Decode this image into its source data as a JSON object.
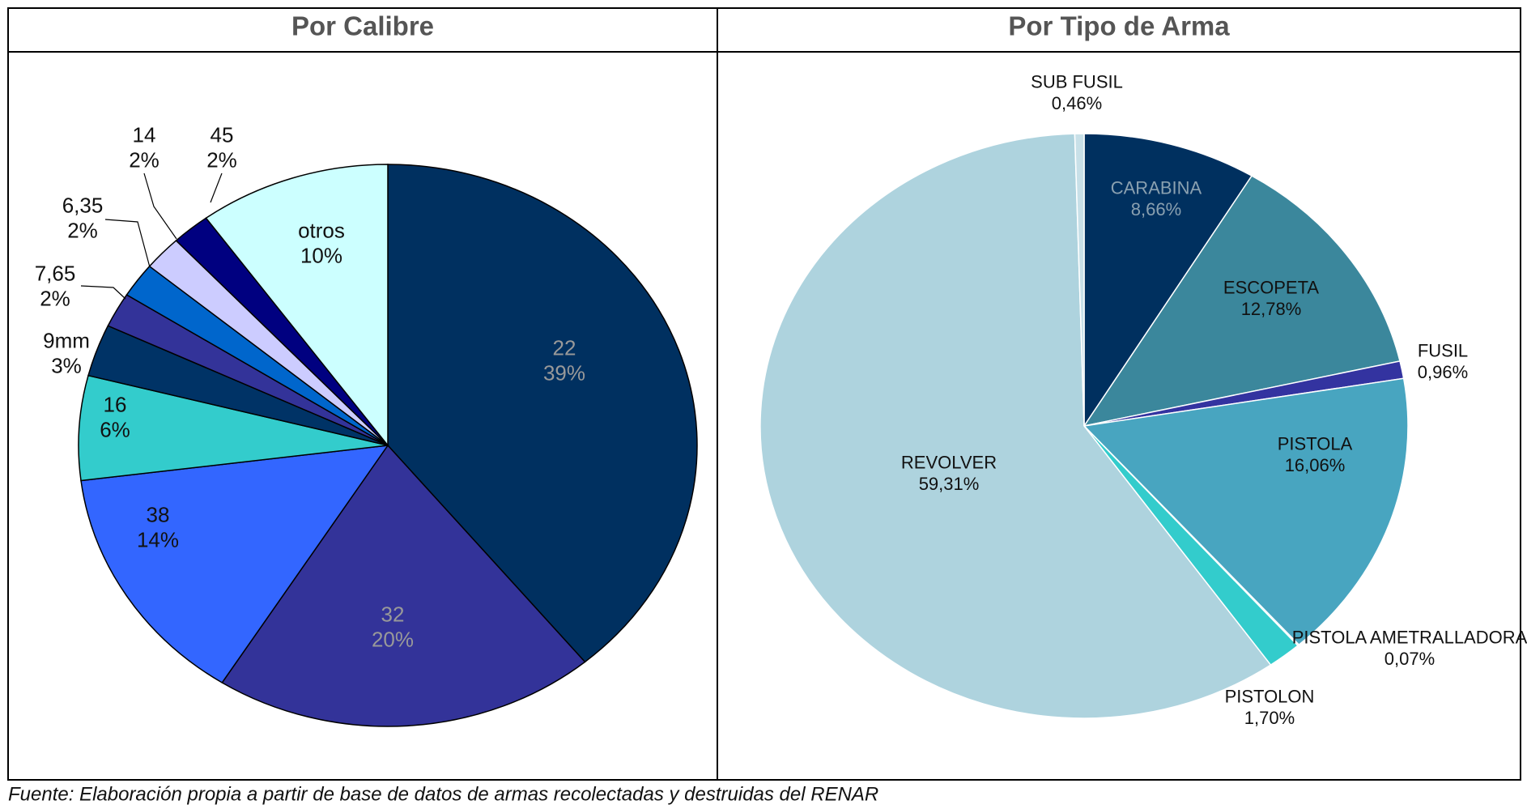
{
  "chart_data": [
    {
      "type": "pie",
      "title": "Por Calibre",
      "categories": [
        "22",
        "32",
        "38",
        "16",
        "9mm",
        "7,65",
        "6,35",
        "14",
        "45",
        "otros"
      ],
      "values": [
        39,
        20,
        14,
        6,
        3,
        2,
        2,
        2,
        2,
        10
      ],
      "value_labels": [
        "39%",
        "20%",
        "14%",
        "6%",
        "3%",
        "2%",
        "2%",
        "2%",
        "2%",
        "10%"
      ],
      "colors": [
        "#003060",
        "#333399",
        "#3366ff",
        "#33cccc",
        "#003366",
        "#333399",
        "#0066cc",
        "#ccccff",
        "#000080",
        "#ccffff"
      ]
    },
    {
      "type": "pie",
      "title": "Por Tipo de Arma",
      "categories": [
        "CARABINA",
        "ESCOPETA",
        "FUSIL",
        "PISTOLA",
        "PISTOLA AMETRALLADORA",
        "PISTOLON",
        "REVOLVER",
        "SUB FUSIL"
      ],
      "values": [
        8.66,
        12.78,
        0.96,
        16.06,
        0.07,
        1.7,
        59.31,
        0.46
      ],
      "value_labels": [
        "8,66%",
        "12,78%",
        "0,96%",
        "16,06%",
        "0,07%",
        "1,70%",
        "59,31%",
        "0,46%"
      ],
      "colors": [
        "#00305f",
        "#3b879c",
        "#3333a0",
        "#48a5c0",
        "#a0c8d8",
        "#33cccc",
        "#aed3de",
        "#c8e0e8"
      ]
    }
  ],
  "source": "Fuente: Elaboración propia a partir de base de datos de armas recolectadas y destruidas del RENAR"
}
